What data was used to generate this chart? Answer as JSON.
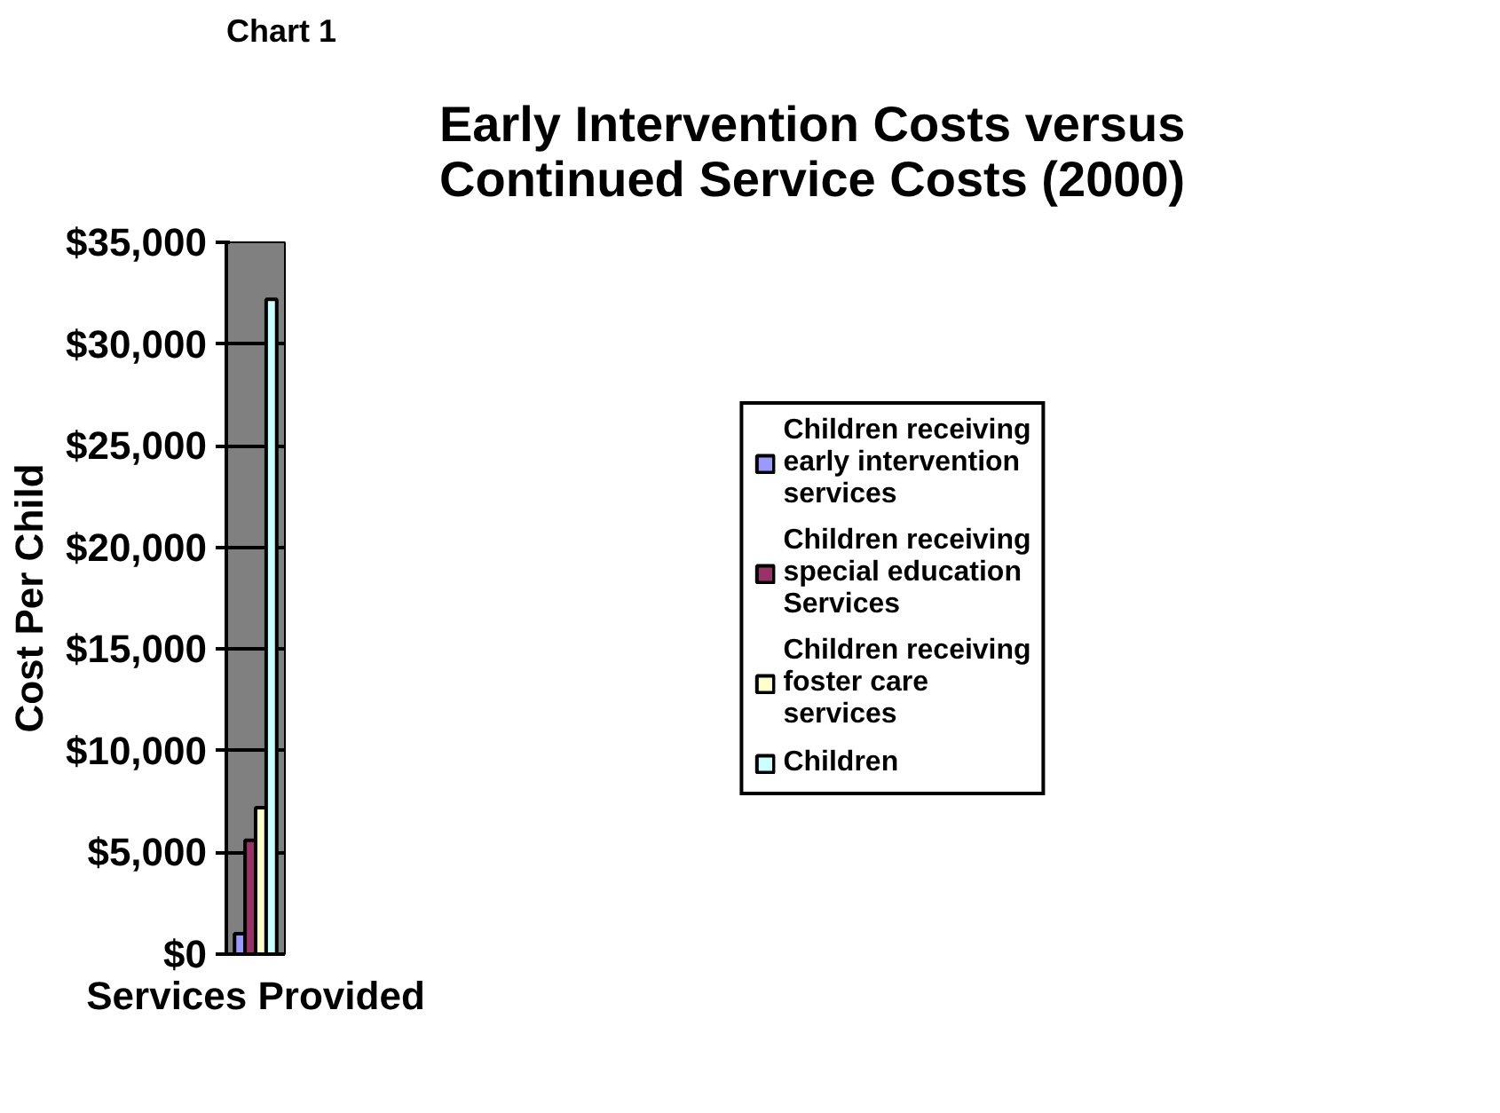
{
  "chart_data": {
    "type": "bar",
    "title": "Early Intervention Costs versus Continued Service Costs (2000)",
    "xlabel": "Services Provided",
    "ylabel": "Cost Per Child",
    "annotations": [
      "Chart 1"
    ],
    "categories": [
      null
    ],
    "series": [
      {
        "name": "Children receiving early intervention services",
        "color": "#9999ff",
        "values": [
          1000
        ]
      },
      {
        "name": "Children receiving special education Services",
        "color": "#993366",
        "values": [
          5600
        ]
      },
      {
        "name": "Children receiving foster care services",
        "color": "#ffffcc",
        "values": [
          7200
        ]
      },
      {
        "name": "Children",
        "color": "#ccffff",
        "values": [
          32200
        ]
      }
    ],
    "ylim": [
      0,
      35000
    ],
    "yticks": [
      {
        "value": 0,
        "label": "$0"
      },
      {
        "value": 5000,
        "label": "$5,000"
      },
      {
        "value": 10000,
        "label": "$10,000"
      },
      {
        "value": 15000,
        "label": "$15,000"
      },
      {
        "value": 20000,
        "label": "$20,000"
      },
      {
        "value": 25000,
        "label": "$25,000"
      },
      {
        "value": 30000,
        "label": "$30,000"
      },
      {
        "value": 35000,
        "label": "$35,000"
      }
    ],
    "grid": "y",
    "legend": "right",
    "tick_labels": "y"
  }
}
